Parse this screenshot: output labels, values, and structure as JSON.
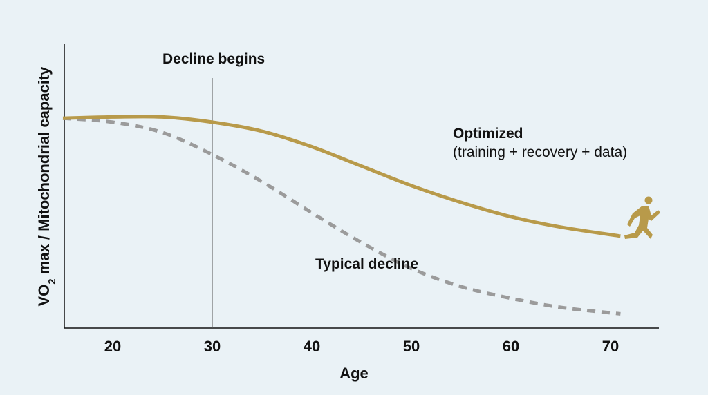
{
  "chart_data": {
    "type": "line",
    "title": "",
    "xlabel": "Age",
    "ylabel_parts": [
      "VO",
      "2",
      " max / Mitochondrial capacity"
    ],
    "xlim": [
      15,
      75
    ],
    "ylim": [
      0,
      100
    ],
    "xticks": [
      20,
      30,
      40,
      50,
      60,
      70
    ],
    "grid": false,
    "series": [
      {
        "name": "Optimized",
        "annotation": "(training + recovery + data)",
        "style": "solid",
        "color": "#b89a4a",
        "x": [
          15,
          20,
          25,
          30,
          35,
          40,
          45,
          50,
          55,
          60,
          65,
          71
        ],
        "y": [
          81,
          81.5,
          81.5,
          79.5,
          76,
          70,
          62.5,
          55,
          48.5,
          43,
          39,
          35.5
        ]
      },
      {
        "name": "Typical decline",
        "style": "dashed",
        "color": "#9b9b9b",
        "x": [
          15,
          20,
          25,
          30,
          35,
          40,
          45,
          50,
          55,
          60,
          65,
          71
        ],
        "y": [
          81,
          79.5,
          75.5,
          67,
          56.5,
          44.5,
          33,
          23,
          16,
          11.5,
          8,
          5.5
        ]
      }
    ],
    "annotations": [
      {
        "id": "decline",
        "text": "Decline begins",
        "x_marker": 30
      }
    ]
  }
}
